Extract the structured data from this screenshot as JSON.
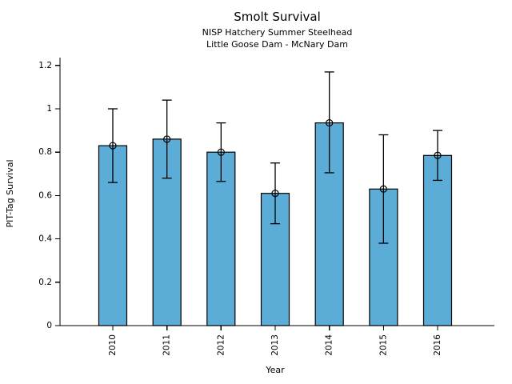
{
  "chart_data": {
    "type": "bar",
    "title": "Smolt Survival",
    "subtitle_line1": "NISP Hatchery Summer Steelhead",
    "subtitle_line2": "Little Goose Dam - McNary Dam",
    "xlabel": "Year",
    "ylabel": "PIT-Tag Survival",
    "categories": [
      "2010",
      "2011",
      "2012",
      "2013",
      "2014",
      "2015",
      "2016"
    ],
    "values": [
      0.83,
      0.86,
      0.8,
      0.61,
      0.935,
      0.63,
      0.785
    ],
    "error_low": [
      0.66,
      0.68,
      0.665,
      0.47,
      0.705,
      0.38,
      0.67
    ],
    "error_high": [
      1.0,
      1.04,
      0.935,
      0.75,
      1.17,
      0.88,
      0.9
    ],
    "ylim": [
      0,
      1.2
    ],
    "yticks": [
      0,
      0.2,
      0.4,
      0.6,
      0.8,
      1,
      1.2
    ],
    "ytick_labels": [
      "0",
      "0.2",
      "0.4",
      "0.6",
      "0.8",
      "1",
      "1.2"
    ],
    "grid": false,
    "legend": null,
    "marker": "open-circle",
    "bar_color": "#5BACD6",
    "bar_edge_color": "#000000",
    "error_bar_color": "#000000",
    "axis_color": "#000000"
  }
}
